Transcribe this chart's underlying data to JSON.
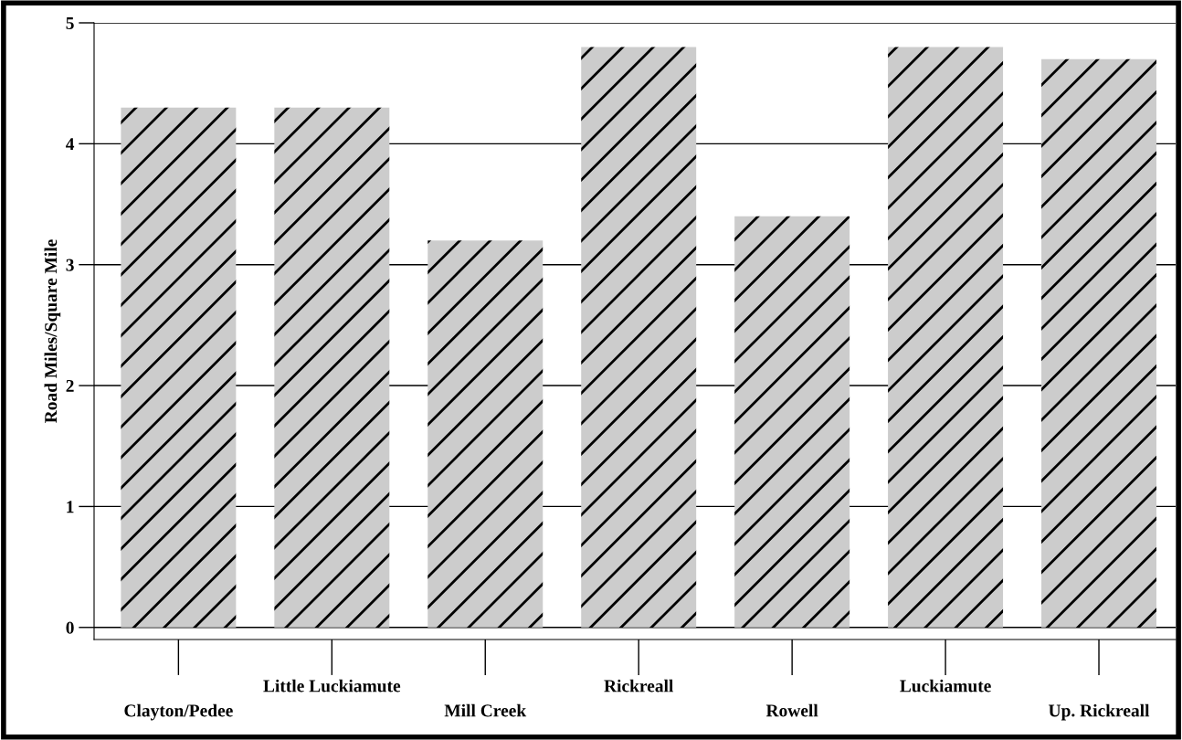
{
  "chart_data": {
    "type": "bar",
    "ylabel": "Road Miles/Square Mile",
    "categories": [
      "Clayton/Pedee",
      "Little Luckiamute",
      "Mill Creek",
      "Rickreall",
      "Rowell",
      "Luckiamute",
      "Up. Rickreall"
    ],
    "values": [
      4.3,
      4.3,
      3.2,
      4.8,
      3.4,
      4.8,
      4.7
    ],
    "color": "#cccccc",
    "ylim": [
      -0.1,
      5
    ],
    "yticks": [
      0,
      1,
      2,
      3,
      4,
      5
    ],
    "grid": "y"
  }
}
